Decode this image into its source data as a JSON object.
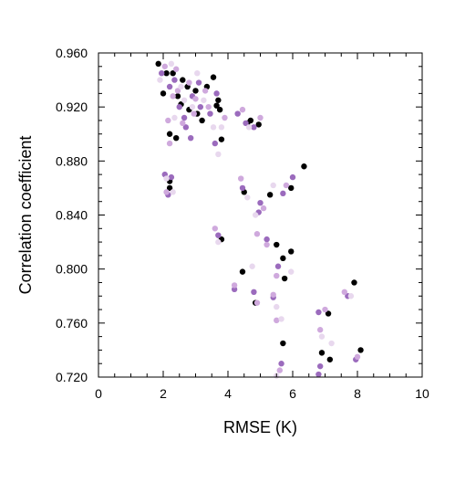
{
  "chart_data": {
    "type": "scatter",
    "title": "",
    "xlabel": "RMSE (K)",
    "ylabel": "Correlation coefficient",
    "xlim": [
      0,
      10
    ],
    "ylim": [
      0.72,
      0.96
    ],
    "x_ticks": [
      "0",
      "2",
      "4",
      "6",
      "8",
      "10"
    ],
    "y_ticks": [
      "0.720",
      "0.760",
      "0.800",
      "0.840",
      "0.880",
      "0.920",
      "0.960"
    ],
    "grid": false,
    "legend": "none",
    "colors": [
      "#000000",
      "#9b6bbd",
      "#cfa9dd",
      "#e8d8ee"
    ],
    "series": [
      {
        "color": "#000000",
        "points": [
          [
            1.85,
            0.952
          ],
          [
            2.0,
            0.93
          ],
          [
            2.3,
            0.945
          ],
          [
            2.45,
            0.928
          ],
          [
            2.6,
            0.94
          ],
          [
            2.8,
            0.918
          ],
          [
            3.0,
            0.932
          ],
          [
            3.2,
            0.91
          ],
          [
            3.55,
            0.942
          ],
          [
            3.7,
            0.925
          ],
          [
            2.1,
            0.945
          ],
          [
            2.55,
            0.922
          ],
          [
            2.75,
            0.935
          ],
          [
            3.05,
            0.915
          ],
          [
            3.35,
            0.935
          ],
          [
            2.2,
            0.9
          ],
          [
            2.4,
            0.897
          ],
          [
            3.65,
            0.921
          ],
          [
            3.75,
            0.918
          ],
          [
            3.8,
            0.896
          ],
          [
            4.7,
            0.91
          ],
          [
            4.95,
            0.907
          ],
          [
            4.6,
            0.908
          ],
          [
            2.2,
            0.86
          ],
          [
            2.2,
            0.865
          ],
          [
            4.5,
            0.857
          ],
          [
            5.3,
            0.855
          ],
          [
            5.95,
            0.86
          ],
          [
            6.35,
            0.876
          ],
          [
            3.8,
            0.822
          ],
          [
            5.5,
            0.818
          ],
          [
            5.95,
            0.813
          ],
          [
            5.7,
            0.808
          ],
          [
            4.45,
            0.798
          ],
          [
            4.85,
            0.775
          ],
          [
            5.75,
            0.793
          ],
          [
            5.7,
            0.745
          ],
          [
            6.9,
            0.738
          ],
          [
            7.1,
            0.767
          ],
          [
            7.15,
            0.733
          ],
          [
            7.9,
            0.79
          ],
          [
            8.1,
            0.74
          ]
        ]
      },
      {
        "color": "#9b6bbd",
        "points": [
          [
            1.95,
            0.945
          ],
          [
            2.2,
            0.935
          ],
          [
            2.5,
            0.92
          ],
          [
            2.7,
            0.905
          ],
          [
            2.9,
            0.928
          ],
          [
            3.15,
            0.92
          ],
          [
            3.45,
            0.915
          ],
          [
            3.65,
            0.93
          ],
          [
            2.35,
            0.94
          ],
          [
            2.65,
            0.912
          ],
          [
            3.1,
            0.938
          ],
          [
            2.85,
            0.897
          ],
          [
            3.6,
            0.893
          ],
          [
            4.3,
            0.915
          ],
          [
            4.55,
            0.908
          ],
          [
            4.8,
            0.905
          ],
          [
            2.05,
            0.87
          ],
          [
            2.25,
            0.868
          ],
          [
            2.15,
            0.855
          ],
          [
            4.45,
            0.86
          ],
          [
            5.0,
            0.849
          ],
          [
            4.95,
            0.842
          ],
          [
            5.7,
            0.856
          ],
          [
            6.0,
            0.868
          ],
          [
            3.7,
            0.825
          ],
          [
            5.2,
            0.822
          ],
          [
            5.55,
            0.802
          ],
          [
            5.4,
            0.779
          ],
          [
            4.2,
            0.785
          ],
          [
            4.8,
            0.783
          ],
          [
            5.65,
            0.73
          ],
          [
            6.8,
            0.768
          ],
          [
            6.8,
            0.722
          ],
          [
            6.85,
            0.728
          ],
          [
            7.7,
            0.78
          ],
          [
            7.95,
            0.733
          ]
        ]
      },
      {
        "color": "#cfa9dd",
        "points": [
          [
            2.05,
            0.95
          ],
          [
            2.4,
            0.948
          ],
          [
            2.8,
            0.938
          ],
          [
            3.3,
            0.932
          ],
          [
            2.3,
            0.928
          ],
          [
            2.6,
            0.908
          ],
          [
            3.4,
            0.92
          ],
          [
            3.9,
            0.912
          ],
          [
            2.95,
            0.915
          ],
          [
            2.15,
            0.91
          ],
          [
            2.45,
            0.932
          ],
          [
            3.0,
            0.926
          ],
          [
            2.2,
            0.893
          ],
          [
            4.45,
            0.918
          ],
          [
            5.0,
            0.912
          ],
          [
            4.4,
            0.867
          ],
          [
            2.1,
            0.857
          ],
          [
            5.1,
            0.845
          ],
          [
            5.8,
            0.862
          ],
          [
            3.6,
            0.83
          ],
          [
            4.9,
            0.826
          ],
          [
            5.2,
            0.818
          ],
          [
            5.5,
            0.795
          ],
          [
            4.2,
            0.788
          ],
          [
            5.4,
            0.781
          ],
          [
            4.9,
            0.775
          ],
          [
            5.5,
            0.762
          ],
          [
            7.0,
            0.77
          ],
          [
            6.85,
            0.755
          ],
          [
            8.0,
            0.735
          ],
          [
            7.6,
            0.783
          ],
          [
            5.6,
            0.725
          ]
        ]
      },
      {
        "color": "#e8d8ee",
        "points": [
          [
            1.9,
            0.94
          ],
          [
            2.25,
            0.952
          ],
          [
            2.55,
            0.935
          ],
          [
            2.9,
            0.92
          ],
          [
            3.25,
            0.925
          ],
          [
            3.55,
            0.905
          ],
          [
            3.05,
            0.945
          ],
          [
            2.65,
            0.925
          ],
          [
            3.8,
            0.905
          ],
          [
            3.7,
            0.885
          ],
          [
            2.35,
            0.912
          ],
          [
            4.65,
            0.905
          ],
          [
            2.1,
            0.867
          ],
          [
            2.3,
            0.857
          ],
          [
            4.6,
            0.853
          ],
          [
            5.4,
            0.862
          ],
          [
            4.85,
            0.84
          ],
          [
            3.7,
            0.82
          ],
          [
            4.75,
            0.802
          ],
          [
            5.65,
            0.763
          ],
          [
            5.95,
            0.798
          ],
          [
            5.5,
            0.772
          ],
          [
            6.9,
            0.75
          ],
          [
            7.2,
            0.745
          ],
          [
            7.8,
            0.78
          ],
          [
            5.5,
            0.721
          ]
        ]
      }
    ]
  }
}
